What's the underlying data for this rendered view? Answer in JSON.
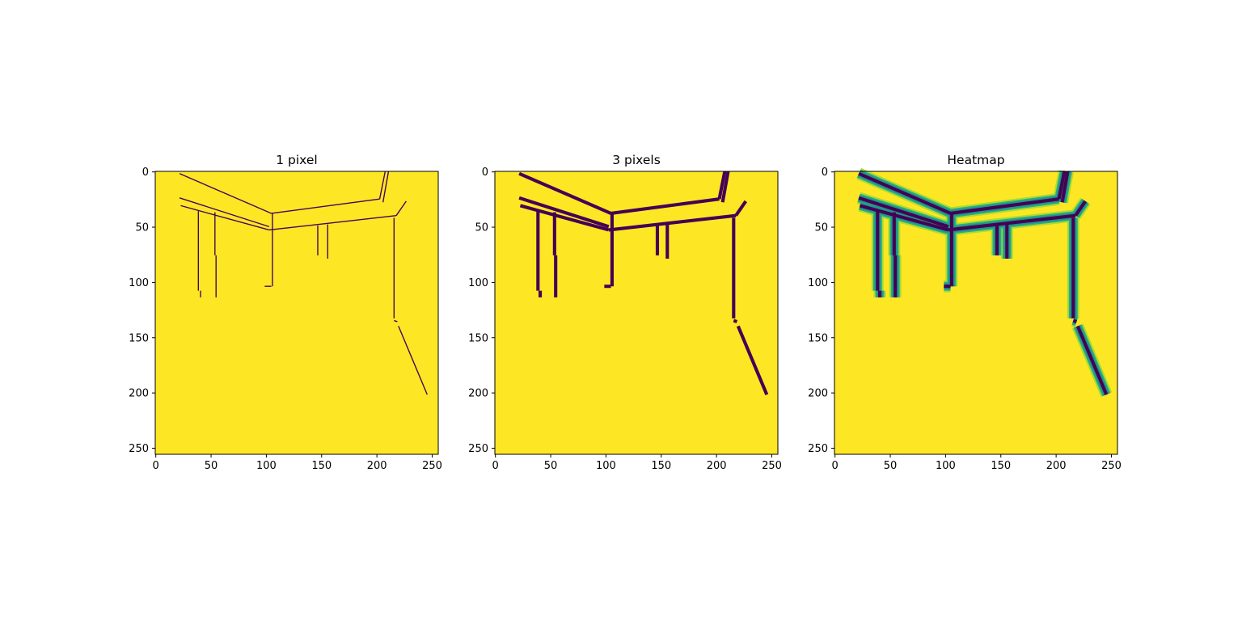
{
  "colors": {
    "background": "#fde725",
    "line": "#440154",
    "halo_outer": "#addc30",
    "halo_mid": "#28ae80",
    "halo_inner": "#21918c",
    "axis": "#000000"
  },
  "chart_data": [
    {
      "type": "heatmap",
      "title": "1 pixel",
      "stroke": 1,
      "mode": "binary",
      "xlim": [
        0,
        255
      ],
      "ylim": [
        255,
        0
      ],
      "xticks": [
        "0",
        "50",
        "100",
        "150",
        "200",
        "250"
      ],
      "yticks": [
        "0",
        "50",
        "100",
        "150",
        "200",
        "250"
      ]
    },
    {
      "type": "heatmap",
      "title": "3 pixels",
      "stroke": 3,
      "mode": "binary",
      "xlim": [
        0,
        255
      ],
      "ylim": [
        255,
        0
      ],
      "xticks": [
        "0",
        "50",
        "100",
        "150",
        "200",
        "250"
      ],
      "yticks": [
        "0",
        "50",
        "100",
        "150",
        "200",
        "250"
      ]
    },
    {
      "type": "heatmap",
      "title": "Heatmap",
      "stroke": 3,
      "mode": "heatmap",
      "xlim": [
        0,
        255
      ],
      "ylim": [
        255,
        0
      ],
      "xticks": [
        "0",
        "50",
        "100",
        "150",
        "200",
        "250"
      ],
      "yticks": [
        "0",
        "50",
        "100",
        "150",
        "200",
        "250"
      ]
    }
  ],
  "edges": [
    [
      [
        22,
        2
      ],
      [
        105,
        38
      ]
    ],
    [
      [
        105,
        38
      ],
      [
        203,
        25
      ]
    ],
    [
      [
        203,
        25
      ],
      [
        208,
        0
      ]
    ],
    [
      [
        211,
        0
      ],
      [
        206,
        28
      ]
    ],
    [
      [
        22,
        24
      ],
      [
        103,
        50
      ]
    ],
    [
      [
        23,
        31
      ],
      [
        103,
        53
      ]
    ],
    [
      [
        103,
        53
      ],
      [
        218,
        40
      ]
    ],
    [
      [
        218,
        40
      ],
      [
        227,
        27
      ]
    ],
    [
      [
        39,
        36
      ],
      [
        39,
        108
      ]
    ],
    [
      [
        41,
        108
      ],
      [
        41,
        114
      ]
    ],
    [
      [
        54,
        37
      ],
      [
        54,
        76
      ]
    ],
    [
      [
        55,
        76
      ],
      [
        55,
        114
      ]
    ],
    [
      [
        106,
        38
      ],
      [
        106,
        104
      ]
    ],
    [
      [
        99,
        104
      ],
      [
        105,
        104
      ]
    ],
    [
      [
        147,
        49
      ],
      [
        147,
        76
      ]
    ],
    [
      [
        156,
        48
      ],
      [
        156,
        79
      ]
    ],
    [
      [
        216,
        42
      ],
      [
        216,
        133
      ]
    ],
    [
      [
        216,
        135
      ],
      [
        219,
        136
      ]
    ],
    [
      [
        220,
        140
      ],
      [
        246,
        202
      ]
    ]
  ]
}
